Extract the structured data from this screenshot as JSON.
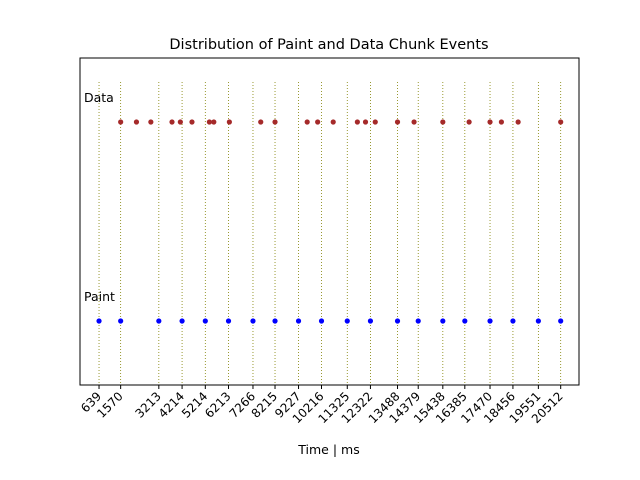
{
  "chart_data": {
    "type": "scatter",
    "title": "Distribution of Paint and Data Chunk Events",
    "xlabel": "Time | ms",
    "ylabel": "",
    "xlim": [
      -180,
      21300
    ],
    "grid": "vertical dotted at x ticks",
    "x_ticks": [
      639,
      1570,
      3213,
      4214,
      5214,
      6213,
      7266,
      8215,
      9227,
      10216,
      11325,
      12322,
      13488,
      14379,
      15438,
      16385,
      17470,
      18456,
      19551,
      20512
    ],
    "series": [
      {
        "name": "Data",
        "color": "#a52a2a",
        "x": [
          1570,
          2250,
          2870,
          3780,
          4140,
          4640,
          5390,
          5580,
          6250,
          7600,
          8215,
          9600,
          10050,
          10720,
          11760,
          12110,
          12530,
          13488,
          14200,
          15438,
          16570,
          17470,
          17960,
          18680,
          20512
        ]
      },
      {
        "name": "Paint",
        "color": "#0000ff",
        "x": [
          639,
          1570,
          3213,
          4214,
          5214,
          6213,
          7266,
          8215,
          9227,
          10216,
          11325,
          12322,
          13488,
          14379,
          15438,
          16385,
          17470,
          18456,
          19551,
          20512
        ]
      }
    ]
  }
}
